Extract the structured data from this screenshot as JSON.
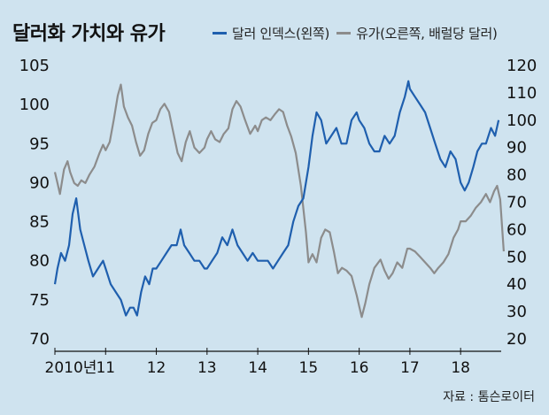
{
  "chart_data": {
    "type": "line",
    "title": "달러화 가치와 유가",
    "source": "자료 : 톰슨로이터",
    "x_labels": [
      "2010년",
      "11",
      "12",
      "13",
      "14",
      "15",
      "16",
      "17",
      "18"
    ],
    "xlim": [
      2010,
      2018.8
    ],
    "left_axis": {
      "label": "달러 인덱스",
      "ylim": [
        70,
        105
      ],
      "ticks": [
        70,
        75,
        80,
        85,
        90,
        95,
        100,
        105
      ]
    },
    "right_axis": {
      "label": "유가",
      "ylim": [
        20,
        120
      ],
      "ticks": [
        20,
        30,
        40,
        50,
        60,
        70,
        80,
        90,
        100,
        110,
        120
      ]
    },
    "series": [
      {
        "name": "달러 인덱스(왼쪽)",
        "axis": "left",
        "color": "#1f5fae",
        "points": [
          [
            2010.0,
            77
          ],
          [
            2010.05,
            79
          ],
          [
            2010.12,
            81
          ],
          [
            2010.2,
            80
          ],
          [
            2010.28,
            82
          ],
          [
            2010.35,
            86
          ],
          [
            2010.42,
            88
          ],
          [
            2010.5,
            84
          ],
          [
            2010.58,
            82
          ],
          [
            2010.66,
            80
          ],
          [
            2010.75,
            78
          ],
          [
            2010.85,
            79
          ],
          [
            2010.95,
            80
          ],
          [
            2011.0,
            79
          ],
          [
            2011.1,
            77
          ],
          [
            2011.2,
            76
          ],
          [
            2011.3,
            75
          ],
          [
            2011.4,
            73
          ],
          [
            2011.48,
            74
          ],
          [
            2011.55,
            74
          ],
          [
            2011.62,
            73
          ],
          [
            2011.7,
            76
          ],
          [
            2011.78,
            78
          ],
          [
            2011.86,
            77
          ],
          [
            2011.93,
            79
          ],
          [
            2012.0,
            79
          ],
          [
            2012.1,
            80
          ],
          [
            2012.2,
            81
          ],
          [
            2012.3,
            82
          ],
          [
            2012.4,
            82
          ],
          [
            2012.48,
            84
          ],
          [
            2012.55,
            82
          ],
          [
            2012.65,
            81
          ],
          [
            2012.75,
            80
          ],
          [
            2012.85,
            80
          ],
          [
            2012.95,
            79
          ],
          [
            2013.0,
            79
          ],
          [
            2013.1,
            80
          ],
          [
            2013.2,
            81
          ],
          [
            2013.3,
            83
          ],
          [
            2013.4,
            82
          ],
          [
            2013.5,
            84
          ],
          [
            2013.6,
            82
          ],
          [
            2013.7,
            81
          ],
          [
            2013.8,
            80
          ],
          [
            2013.9,
            81
          ],
          [
            2014.0,
            80
          ],
          [
            2014.1,
            80
          ],
          [
            2014.2,
            80
          ],
          [
            2014.3,
            79
          ],
          [
            2014.4,
            80
          ],
          [
            2014.5,
            81
          ],
          [
            2014.6,
            82
          ],
          [
            2014.7,
            85
          ],
          [
            2014.8,
            87
          ],
          [
            2014.9,
            88
          ],
          [
            2015.0,
            92
          ],
          [
            2015.08,
            96
          ],
          [
            2015.16,
            99
          ],
          [
            2015.25,
            98
          ],
          [
            2015.35,
            95
          ],
          [
            2015.45,
            96
          ],
          [
            2015.55,
            97
          ],
          [
            2015.65,
            95
          ],
          [
            2015.75,
            95
          ],
          [
            2015.85,
            98
          ],
          [
            2015.95,
            99
          ],
          [
            2016.0,
            98
          ],
          [
            2016.1,
            97
          ],
          [
            2016.2,
            95
          ],
          [
            2016.3,
            94
          ],
          [
            2016.4,
            94
          ],
          [
            2016.5,
            96
          ],
          [
            2016.6,
            95
          ],
          [
            2016.7,
            96
          ],
          [
            2016.8,
            99
          ],
          [
            2016.9,
            101
          ],
          [
            2016.97,
            103
          ],
          [
            2017.0,
            102
          ],
          [
            2017.1,
            101
          ],
          [
            2017.2,
            100
          ],
          [
            2017.3,
            99
          ],
          [
            2017.4,
            97
          ],
          [
            2017.5,
            95
          ],
          [
            2017.6,
            93
          ],
          [
            2017.7,
            92
          ],
          [
            2017.8,
            94
          ],
          [
            2017.9,
            93
          ],
          [
            2018.0,
            90
          ],
          [
            2018.08,
            89
          ],
          [
            2018.16,
            90
          ],
          [
            2018.25,
            92
          ],
          [
            2018.33,
            94
          ],
          [
            2018.42,
            95
          ],
          [
            2018.5,
            95
          ],
          [
            2018.6,
            97
          ],
          [
            2018.68,
            96
          ],
          [
            2018.75,
            98
          ]
        ]
      },
      {
        "name": "유가(오른쪽, 배럴당 달러)",
        "axis": "right",
        "color": "#8c8c8c",
        "points": [
          [
            2010.0,
            81
          ],
          [
            2010.05,
            77
          ],
          [
            2010.1,
            73
          ],
          [
            2010.18,
            82
          ],
          [
            2010.25,
            85
          ],
          [
            2010.3,
            81
          ],
          [
            2010.38,
            77
          ],
          [
            2010.45,
            76
          ],
          [
            2010.52,
            78
          ],
          [
            2010.6,
            77
          ],
          [
            2010.68,
            80
          ],
          [
            2010.78,
            83
          ],
          [
            2010.88,
            88
          ],
          [
            2010.95,
            91
          ],
          [
            2011.0,
            89
          ],
          [
            2011.08,
            92
          ],
          [
            2011.16,
            100
          ],
          [
            2011.24,
            109
          ],
          [
            2011.3,
            113
          ],
          [
            2011.36,
            105
          ],
          [
            2011.44,
            101
          ],
          [
            2011.52,
            98
          ],
          [
            2011.6,
            92
          ],
          [
            2011.68,
            87
          ],
          [
            2011.76,
            89
          ],
          [
            2011.84,
            95
          ],
          [
            2011.92,
            99
          ],
          [
            2012.0,
            100
          ],
          [
            2012.08,
            104
          ],
          [
            2012.16,
            106
          ],
          [
            2012.25,
            103
          ],
          [
            2012.33,
            96
          ],
          [
            2012.42,
            88
          ],
          [
            2012.5,
            85
          ],
          [
            2012.58,
            92
          ],
          [
            2012.66,
            96
          ],
          [
            2012.75,
            90
          ],
          [
            2012.85,
            88
          ],
          [
            2012.95,
            90
          ],
          [
            2013.0,
            93
          ],
          [
            2013.08,
            96
          ],
          [
            2013.16,
            93
          ],
          [
            2013.25,
            92
          ],
          [
            2013.33,
            95
          ],
          [
            2013.42,
            97
          ],
          [
            2013.5,
            104
          ],
          [
            2013.58,
            107
          ],
          [
            2013.66,
            105
          ],
          [
            2013.75,
            100
          ],
          [
            2013.85,
            95
          ],
          [
            2013.95,
            98
          ],
          [
            2014.0,
            96
          ],
          [
            2014.08,
            100
          ],
          [
            2014.16,
            101
          ],
          [
            2014.25,
            100
          ],
          [
            2014.33,
            102
          ],
          [
            2014.42,
            104
          ],
          [
            2014.5,
            103
          ],
          [
            2014.58,
            98
          ],
          [
            2014.66,
            94
          ],
          [
            2014.75,
            88
          ],
          [
            2014.85,
            76
          ],
          [
            2014.95,
            59
          ],
          [
            2015.0,
            48
          ],
          [
            2015.08,
            51
          ],
          [
            2015.16,
            48
          ],
          [
            2015.25,
            57
          ],
          [
            2015.33,
            60
          ],
          [
            2015.42,
            59
          ],
          [
            2015.5,
            52
          ],
          [
            2015.58,
            44
          ],
          [
            2015.66,
            46
          ],
          [
            2015.75,
            45
          ],
          [
            2015.85,
            43
          ],
          [
            2015.95,
            36
          ],
          [
            2016.0,
            32
          ],
          [
            2016.05,
            28
          ],
          [
            2016.12,
            33
          ],
          [
            2016.2,
            40
          ],
          [
            2016.3,
            46
          ],
          [
            2016.42,
            49
          ],
          [
            2016.5,
            45
          ],
          [
            2016.58,
            42
          ],
          [
            2016.66,
            44
          ],
          [
            2016.75,
            48
          ],
          [
            2016.85,
            46
          ],
          [
            2016.95,
            53
          ],
          [
            2017.0,
            53
          ],
          [
            2017.1,
            52
          ],
          [
            2017.2,
            50
          ],
          [
            2017.3,
            48
          ],
          [
            2017.4,
            46
          ],
          [
            2017.48,
            44
          ],
          [
            2017.56,
            46
          ],
          [
            2017.66,
            48
          ],
          [
            2017.76,
            51
          ],
          [
            2017.86,
            57
          ],
          [
            2017.95,
            60
          ],
          [
            2018.0,
            63
          ],
          [
            2018.1,
            63
          ],
          [
            2018.2,
            65
          ],
          [
            2018.3,
            68
          ],
          [
            2018.4,
            70
          ],
          [
            2018.5,
            73
          ],
          [
            2018.58,
            70
          ],
          [
            2018.66,
            74
          ],
          [
            2018.72,
            76
          ],
          [
            2018.78,
            71
          ],
          [
            2018.85,
            52
          ]
        ]
      }
    ]
  }
}
